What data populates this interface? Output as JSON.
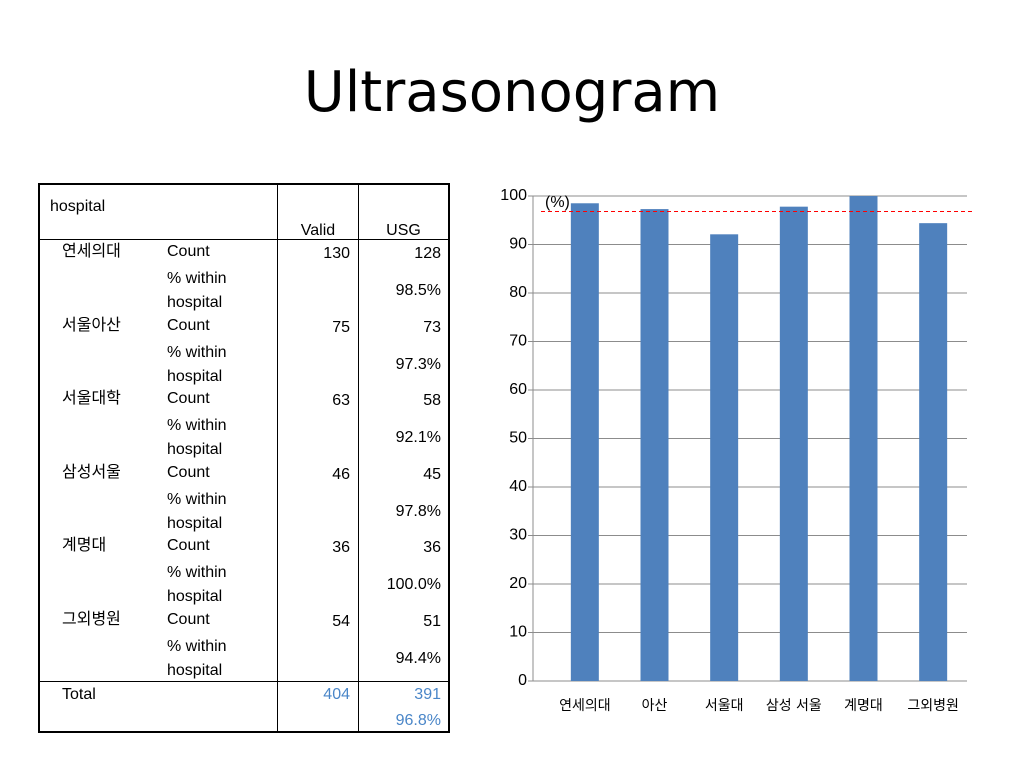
{
  "title": "Ultrasonogram",
  "table": {
    "header": [
      "hospital",
      "Valid",
      "USG"
    ],
    "rows": [
      {
        "name": "연세의대",
        "count_label": "Count",
        "valid": "130",
        "usg": "128",
        "pct_label": "% within hospital",
        "pct": "98.5%"
      },
      {
        "name": "서울아산",
        "count_label": "Count",
        "valid": "75",
        "usg": "73",
        "pct_label": "% within hospital",
        "pct": "97.3%"
      },
      {
        "name": "서울대학",
        "count_label": "Count",
        "valid": "63",
        "usg": "58",
        "pct_label": "% within hospital",
        "pct": "92.1%"
      },
      {
        "name": "삼성서울",
        "count_label": "Count",
        "valid": "46",
        "usg": "45",
        "pct_label": "% within hospital",
        "pct": "97.8%"
      },
      {
        "name": "계명대",
        "count_label": "Count",
        "valid": "36",
        "usg": "36",
        "pct_label": "% within hospital",
        "pct": "100.0%"
      },
      {
        "name": "그외병원",
        "count_label": "Count",
        "valid": "54",
        "usg": "51",
        "pct_label": "% within hospital",
        "pct": "94.4%"
      }
    ],
    "total": {
      "label": "Total",
      "valid": "404",
      "usg": "391",
      "pct": "96.8%"
    }
  },
  "chart_data": {
    "type": "bar",
    "y_label": "(%)",
    "categories": [
      "연세의대",
      "아산",
      "서울대",
      "삼성 서울",
      "계명대",
      "그외병원"
    ],
    "values": [
      98.5,
      97.3,
      92.1,
      97.8,
      100.0,
      94.4
    ],
    "color": "#4f81bd",
    "ylim": [
      0,
      100
    ],
    "yticks": [
      0,
      10,
      20,
      30,
      40,
      50,
      60,
      70,
      80,
      90,
      100
    ],
    "grid": true,
    "reference_line": {
      "value": 96.8,
      "color": "#ff0000"
    }
  }
}
